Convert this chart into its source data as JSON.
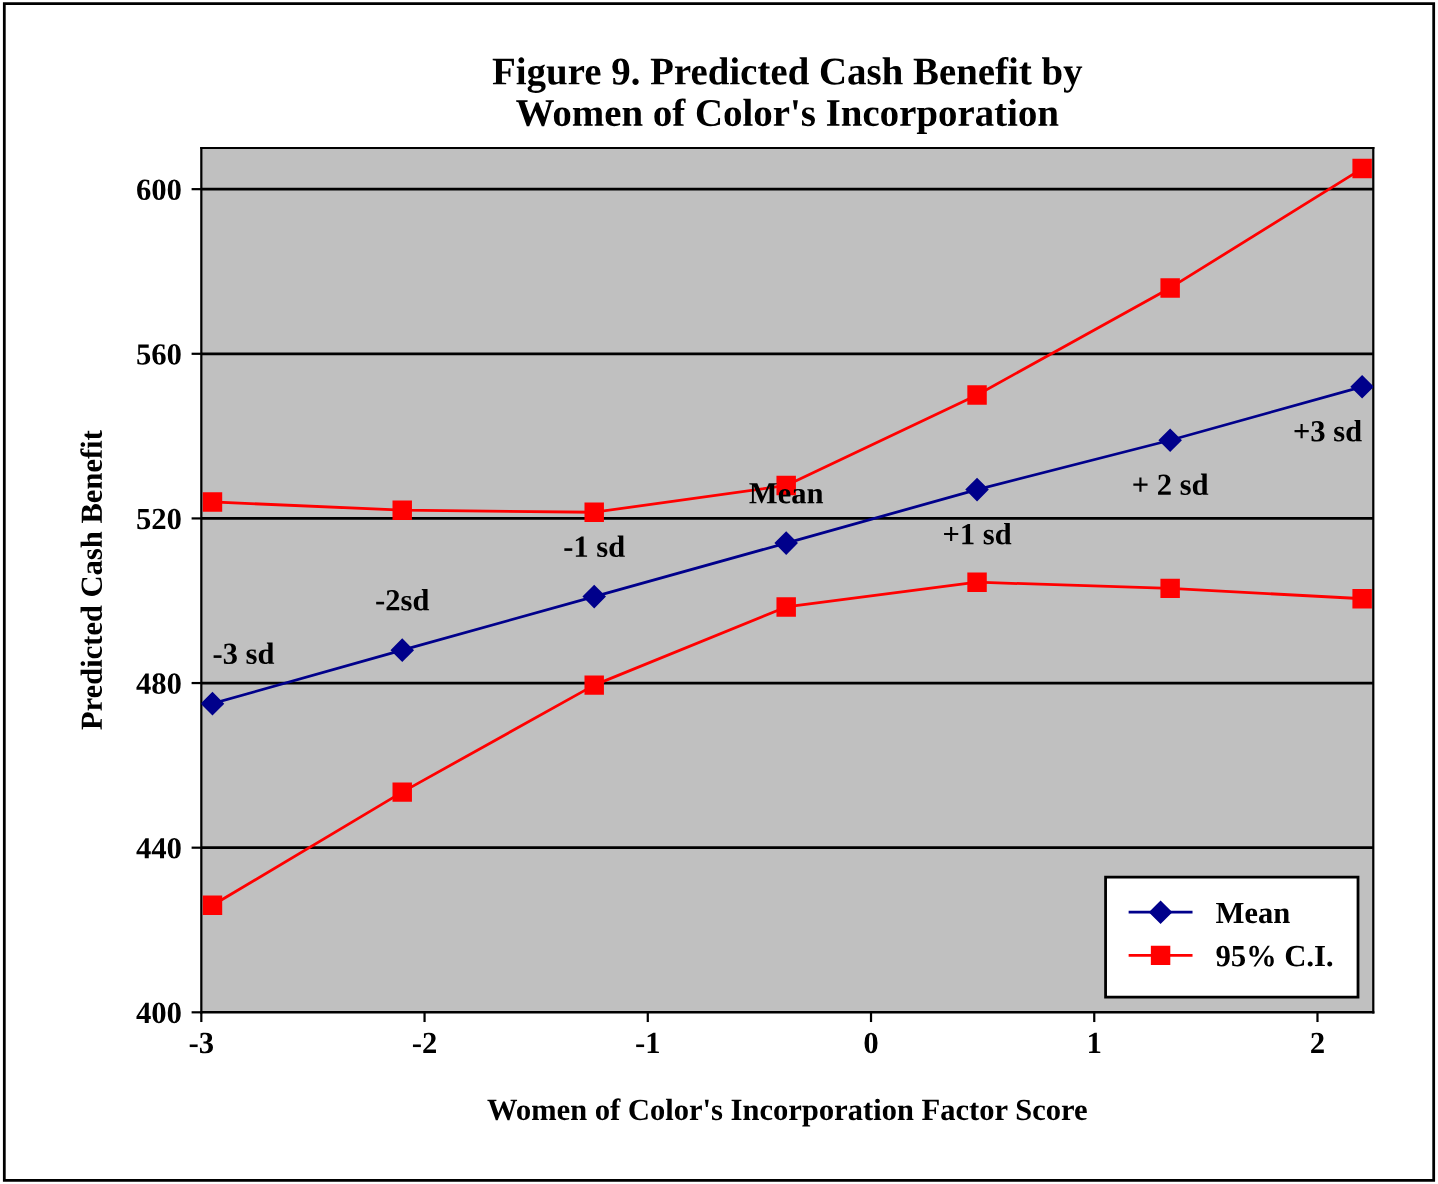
{
  "chart_data": {
    "type": "line",
    "title": "Figure 9. Predicted Cash Benefit by\nWomen of Color's Incorporation",
    "xlabel": "Women of Color's Incorporation Factor Score",
    "ylabel": "Predicted Cash Benefit",
    "xlim": [
      -3,
      2.25
    ],
    "xticks": [
      -3,
      -2,
      -1,
      0,
      1,
      2
    ],
    "ylim": [
      400,
      610
    ],
    "yticks": [
      400,
      440,
      480,
      520,
      560,
      600
    ],
    "grid": "y",
    "legend": "bottom right",
    "series": [
      {
        "name": "Mean",
        "color": "#00008b",
        "marker": "diamond",
        "x": [
          -2.95,
          -2.1,
          -1.24,
          -0.38,
          0.475,
          1.34,
          2.2
        ],
        "values": [
          475,
          488,
          501,
          514,
          527,
          539,
          552
        ]
      },
      {
        "name": "95% C.I.",
        "color": "#ff0000",
        "marker": "square",
        "x": [
          -2.95,
          -2.1,
          -1.24,
          -0.38,
          0.475,
          1.34,
          2.2
        ],
        "values": [
          524,
          522,
          521.5,
          528,
          550,
          576,
          605
        ]
      },
      {
        "color": "#ff0000",
        "marker": "square",
        "x": [
          -2.95,
          -2.1,
          -1.24,
          -0.38,
          0.475,
          1.34,
          2.2
        ],
        "values": [
          426,
          453.5,
          479.5,
          498.5,
          504.5,
          503,
          500.5
        ]
      }
    ],
    "annotations": [
      {
        "text": "-3 sd",
        "x": -2.95,
        "y": 475
      },
      {
        "text": "-2sd",
        "x": -2.1,
        "y": 488
      },
      {
        "text": "-1 sd",
        "x": -1.24,
        "y": 501
      },
      {
        "text": "Mean",
        "x": -0.38,
        "y": 514
      },
      {
        "text": "+1 sd",
        "x": 0.475,
        "y": 527
      },
      {
        "text": "+ 2 sd",
        "x": 1.34,
        "y": 539
      },
      {
        "text": "+3 sd",
        "x": 2.2,
        "y": 552
      }
    ]
  }
}
